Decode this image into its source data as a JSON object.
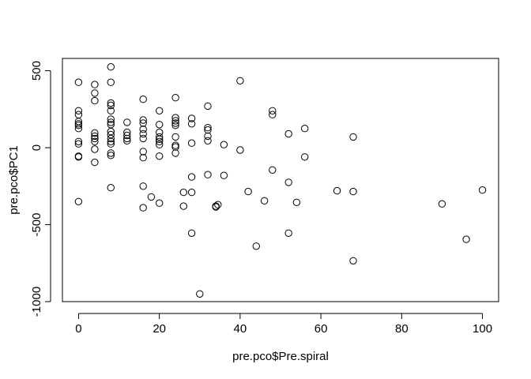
{
  "chart_data": {
    "type": "scatter",
    "title": "",
    "xlabel": "pre.pco$Pre.spiral",
    "ylabel": "pre.pco$PC1",
    "xlim": [
      -4,
      104
    ],
    "ylim": [
      -1000,
      580
    ],
    "x_ticks": [
      0,
      20,
      40,
      60,
      80,
      100
    ],
    "y_ticks": [
      -1000,
      -500,
      0,
      500
    ],
    "x_tick_labels": [
      "0",
      "20",
      "40",
      "60",
      "80",
      "100"
    ],
    "y_tick_labels": [
      "-1000",
      "-500",
      "0",
      "500"
    ],
    "grid": false,
    "legend": "none",
    "marker": "open-circle",
    "color": "#000000",
    "points": [
      [
        0,
        425
      ],
      [
        0,
        240
      ],
      [
        0,
        215
      ],
      [
        0,
        170
      ],
      [
        0,
        155
      ],
      [
        0,
        145
      ],
      [
        0,
        125
      ],
      [
        0,
        40
      ],
      [
        0,
        25
      ],
      [
        0,
        -55
      ],
      [
        0,
        -60
      ],
      [
        0,
        -350
      ],
      [
        4,
        410
      ],
      [
        4,
        355
      ],
      [
        4,
        305
      ],
      [
        4,
        95
      ],
      [
        4,
        75
      ],
      [
        4,
        60
      ],
      [
        4,
        40
      ],
      [
        4,
        -10
      ],
      [
        4,
        -95
      ],
      [
        8,
        525
      ],
      [
        8,
        425
      ],
      [
        8,
        290
      ],
      [
        8,
        275
      ],
      [
        8,
        240
      ],
      [
        8,
        185
      ],
      [
        8,
        165
      ],
      [
        8,
        150
      ],
      [
        8,
        105
      ],
      [
        8,
        85
      ],
      [
        8,
        60
      ],
      [
        8,
        40
      ],
      [
        8,
        25
      ],
      [
        8,
        -35
      ],
      [
        8,
        -50
      ],
      [
        8,
        -260
      ],
      [
        12,
        165
      ],
      [
        12,
        100
      ],
      [
        12,
        80
      ],
      [
        12,
        60
      ],
      [
        12,
        45
      ],
      [
        16,
        315
      ],
      [
        16,
        180
      ],
      [
        16,
        160
      ],
      [
        16,
        120
      ],
      [
        16,
        90
      ],
      [
        16,
        60
      ],
      [
        16,
        -25
      ],
      [
        16,
        -65
      ],
      [
        16,
        -250
      ],
      [
        16,
        -390
      ],
      [
        18,
        -320
      ],
      [
        20,
        240
      ],
      [
        20,
        150
      ],
      [
        20,
        100
      ],
      [
        20,
        70
      ],
      [
        20,
        55
      ],
      [
        20,
        40
      ],
      [
        20,
        20
      ],
      [
        20,
        -55
      ],
      [
        20,
        -360
      ],
      [
        24,
        325
      ],
      [
        24,
        195
      ],
      [
        24,
        175
      ],
      [
        24,
        160
      ],
      [
        24,
        145
      ],
      [
        24,
        70
      ],
      [
        24,
        15
      ],
      [
        24,
        5
      ],
      [
        24,
        -35
      ],
      [
        26,
        -290
      ],
      [
        26,
        -380
      ],
      [
        28,
        190
      ],
      [
        28,
        155
      ],
      [
        28,
        30
      ],
      [
        28,
        -190
      ],
      [
        28,
        -290
      ],
      [
        28,
        -555
      ],
      [
        30,
        -950
      ],
      [
        32,
        270
      ],
      [
        32,
        130
      ],
      [
        32,
        115
      ],
      [
        32,
        75
      ],
      [
        32,
        45
      ],
      [
        32,
        -175
      ],
      [
        34,
        -385
      ],
      [
        34,
        -380
      ],
      [
        34.5,
        -370
      ],
      [
        36,
        20
      ],
      [
        36,
        -180
      ],
      [
        40,
        435
      ],
      [
        40,
        -15
      ],
      [
        42,
        -285
      ],
      [
        44,
        -640
      ],
      [
        46,
        -345
      ],
      [
        48,
        240
      ],
      [
        48,
        215
      ],
      [
        48,
        -145
      ],
      [
        52,
        90
      ],
      [
        52,
        -225
      ],
      [
        52,
        -555
      ],
      [
        54,
        -355
      ],
      [
        56,
        125
      ],
      [
        56,
        -60
      ],
      [
        64,
        -280
      ],
      [
        68,
        70
      ],
      [
        68,
        -285
      ],
      [
        68,
        -735
      ],
      [
        90,
        -365
      ],
      [
        96,
        -595
      ],
      [
        100,
        -275
      ]
    ]
  }
}
